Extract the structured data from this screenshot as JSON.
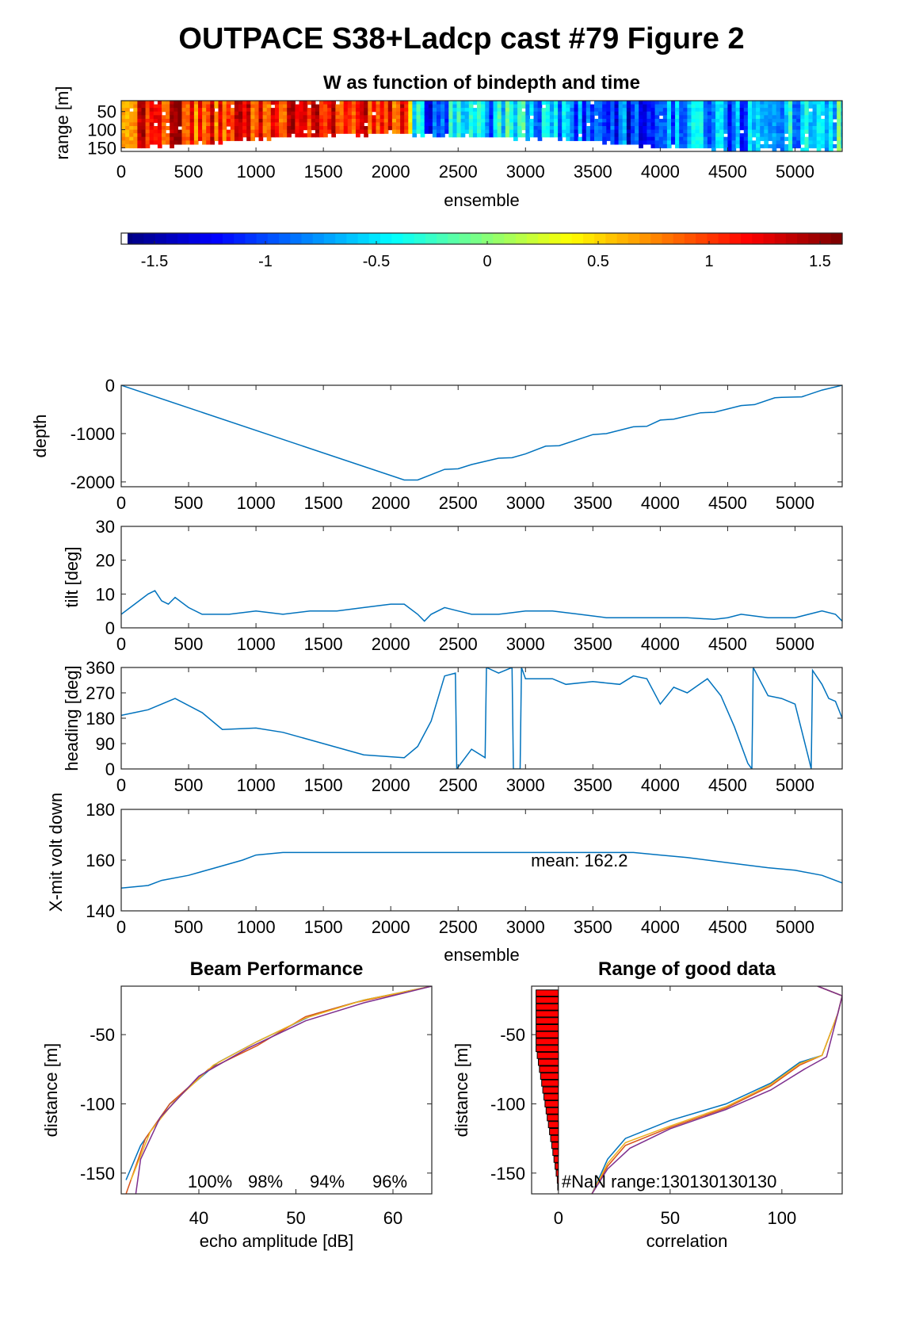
{
  "figure": {
    "title": "OUTPACE S38+Ladcp cast #79 Figure 2"
  },
  "chart_data": [
    {
      "type": "heatmap",
      "title": "W as function of bindepth and time",
      "xlabel": "ensemble",
      "ylabel": "range [m]",
      "xlim": [
        0,
        5350
      ],
      "ylim": [
        20,
        160
      ],
      "xticks": [
        0,
        500,
        1000,
        1500,
        2000,
        2500,
        3000,
        3500,
        4000,
        4500,
        5000
      ],
      "yticks": [
        50,
        100,
        150
      ],
      "colorbar": {
        "ticks": [
          -1.5,
          -1,
          -0.5,
          0,
          0.5,
          1,
          1.5
        ],
        "clim": [
          -1.65,
          1.6
        ],
        "colormap": "jet"
      },
      "w_profile": {
        "x": [
          0,
          200,
          400,
          600,
          900,
          1200,
          1500,
          1800,
          2100,
          2150,
          2300,
          2500,
          2700,
          2900,
          3100,
          3400,
          3700,
          4000,
          4300,
          4500,
          4800,
          5100,
          5350
        ],
        "w": [
          0.7,
          1.2,
          1.3,
          1.0,
          1.1,
          1.2,
          1.25,
          1.1,
          1.0,
          -0.4,
          -1.2,
          -0.3,
          -0.8,
          -0.2,
          -0.7,
          -0.9,
          -1.1,
          -0.8,
          -0.5,
          -1.1,
          -0.4,
          -0.7,
          -0.3
        ]
      }
    },
    {
      "type": "line",
      "xlabel": "",
      "ylabel": "depth",
      "xlim": [
        0,
        5350
      ],
      "ylim": [
        -2100,
        0
      ],
      "xticks": [
        0,
        500,
        1000,
        1500,
        2000,
        2500,
        3000,
        3500,
        4000,
        4500,
        5000
      ],
      "yticks": [
        0,
        -1000,
        -2000
      ],
      "x": [
        0,
        2100,
        2200,
        2400,
        2500,
        2600,
        2800,
        2900,
        3000,
        3150,
        3250,
        3500,
        3600,
        3800,
        3900,
        4000,
        4100,
        4300,
        4400,
        4600,
        4700,
        4850,
        4900,
        5050,
        5200,
        5350
      ],
      "y": [
        0,
        -1960,
        -1960,
        -1740,
        -1730,
        -1640,
        -1510,
        -1500,
        -1420,
        -1260,
        -1250,
        -1020,
        -1000,
        -860,
        -850,
        -720,
        -700,
        -570,
        -560,
        -420,
        -400,
        -260,
        -250,
        -240,
        -100,
        0
      ]
    },
    {
      "type": "line",
      "xlabel": "",
      "ylabel": "tilt [deg]",
      "xlim": [
        0,
        5350
      ],
      "ylim": [
        0,
        30
      ],
      "xticks": [
        0,
        500,
        1000,
        1500,
        2000,
        2500,
        3000,
        3500,
        4000,
        4500,
        5000
      ],
      "yticks": [
        0,
        10,
        20,
        30
      ],
      "x": [
        0,
        100,
        200,
        250,
        300,
        350,
        400,
        500,
        600,
        800,
        1000,
        1200,
        1400,
        1600,
        1800,
        2000,
        2100,
        2200,
        2250,
        2300,
        2400,
        2500,
        2600,
        2800,
        3000,
        3200,
        3400,
        3600,
        3800,
        4000,
        4200,
        4400,
        4500,
        4600,
        4800,
        5000,
        5200,
        5300,
        5350
      ],
      "y": [
        4,
        7,
        10,
        11,
        8,
        7,
        9,
        6,
        4,
        4,
        5,
        4,
        5,
        5,
        6,
        7,
        7,
        4,
        2,
        4,
        6,
        5,
        4,
        4,
        5,
        5,
        4,
        3,
        3,
        3,
        3,
        2.5,
        3,
        4,
        3,
        3,
        5,
        4,
        2
      ]
    },
    {
      "type": "line",
      "xlabel": "",
      "ylabel": "heading [deg]",
      "xlim": [
        0,
        5350
      ],
      "ylim": [
        0,
        360
      ],
      "xticks": [
        0,
        500,
        1000,
        1500,
        2000,
        2500,
        3000,
        3500,
        4000,
        4500,
        5000
      ],
      "yticks": [
        0,
        90,
        180,
        270,
        360
      ],
      "x": [
        0,
        100,
        200,
        400,
        600,
        750,
        1000,
        1200,
        1500,
        1800,
        2100,
        2200,
        2300,
        2400,
        2480,
        2490,
        2600,
        2700,
        2710,
        2800,
        2900,
        2910,
        2960,
        2970,
        3000,
        3200,
        3300,
        3500,
        3700,
        3800,
        3900,
        4000,
        4100,
        4200,
        4350,
        4450,
        4550,
        4650,
        4680,
        4690,
        4800,
        4900,
        5000,
        5100,
        5120,
        5130,
        5200,
        5250,
        5300,
        5350
      ],
      "y": [
        190,
        200,
        210,
        250,
        200,
        140,
        145,
        130,
        90,
        50,
        40,
        80,
        170,
        330,
        340,
        0,
        70,
        40,
        360,
        340,
        360,
        0,
        0,
        360,
        320,
        320,
        300,
        310,
        300,
        330,
        320,
        230,
        290,
        270,
        320,
        260,
        150,
        20,
        0,
        360,
        260,
        250,
        230,
        40,
        0,
        350,
        300,
        250,
        240,
        180
      ]
    },
    {
      "type": "line",
      "xlabel": "ensemble",
      "ylabel": "X-mit volt down",
      "xlim": [
        0,
        5350
      ],
      "ylim": [
        140,
        180
      ],
      "xticks": [
        0,
        500,
        1000,
        1500,
        2000,
        2500,
        3000,
        3500,
        4000,
        4500,
        5000
      ],
      "yticks": [
        140,
        160,
        180
      ],
      "annotation": "mean: 162.2",
      "x": [
        0,
        200,
        300,
        500,
        700,
        900,
        1000,
        1200,
        3800,
        4000,
        4200,
        4500,
        4800,
        5000,
        5200,
        5350
      ],
      "y": [
        149,
        150,
        152,
        154,
        157,
        160,
        162,
        163,
        163,
        162,
        161,
        159,
        157,
        156,
        154,
        151
      ]
    },
    {
      "type": "line",
      "title": "Beam Performance",
      "xlabel": "echo amplitude [dB]",
      "ylabel": "distance [m]",
      "xlim": [
        32,
        64
      ],
      "ylim": [
        -165,
        -15
      ],
      "xticks": [
        40,
        50,
        60
      ],
      "yticks": [
        -50,
        -100,
        -150
      ],
      "annotations": [
        "100%",
        "98%",
        "94%",
        "96%"
      ],
      "series": [
        {
          "color": "#0072bd",
          "x": [
            64,
            57,
            52,
            46,
            42,
            37,
            34,
            32.5
          ],
          "y": [
            -15,
            -25,
            -35,
            -55,
            -70,
            -100,
            -130,
            -155
          ]
        },
        {
          "color": "#d95319",
          "x": [
            64,
            56,
            51,
            46,
            41,
            37,
            34.5,
            32.5
          ],
          "y": [
            -15,
            -27,
            -37,
            -58,
            -75,
            -100,
            -125,
            -165
          ]
        },
        {
          "color": "#edb120",
          "x": [
            64,
            57,
            51,
            46,
            41.5,
            37.5,
            35,
            33
          ],
          "y": [
            -15,
            -25,
            -38,
            -55,
            -72,
            -98,
            -120,
            -155
          ]
        },
        {
          "color": "#7e2f8e",
          "x": [
            64,
            57,
            51,
            45,
            40,
            36,
            34,
            33.5
          ],
          "y": [
            -15,
            -27,
            -40,
            -60,
            -80,
            -110,
            -140,
            -165
          ]
        }
      ]
    },
    {
      "type": "line",
      "title": "Range of good data",
      "xlabel": "correlation",
      "ylabel": "distance [m]",
      "xlim": [
        -12,
        127
      ],
      "ylim": [
        -165,
        -15
      ],
      "xticks": [
        0,
        50,
        100
      ],
      "yticks": [
        -50,
        -100,
        -150
      ],
      "annotation": "#NaN range:130130130130",
      "bars": {
        "y": [
          -20,
          -25,
          -30,
          -35,
          -40,
          -45,
          -50,
          -55,
          -60,
          -65,
          -70,
          -75,
          -80,
          -85,
          -90,
          -95,
          -100,
          -105,
          -110,
          -115,
          -120,
          -125,
          -130,
          -135,
          -140,
          -145,
          -150,
          -155,
          -160
        ],
        "x": [
          -10,
          -10,
          -10,
          -10,
          -10,
          -10,
          -10,
          -10,
          -10,
          -9.5,
          -9,
          -8.5,
          -8,
          -7.5,
          -7,
          -6.5,
          -6,
          -5.5,
          -5,
          -4.5,
          -4,
          -3.5,
          -3,
          -2.5,
          -2,
          -1.5,
          -1,
          -0.5,
          -0.3
        ]
      },
      "series": [
        {
          "color": "#0072bd",
          "x": [
            116,
            127,
            125,
            118,
            108,
            95,
            75,
            50,
            30,
            22,
            15
          ],
          "y": [
            -15,
            -22,
            -35,
            -65,
            -70,
            -85,
            -100,
            -112,
            -125,
            -140,
            -165
          ]
        },
        {
          "color": "#d95319",
          "x": [
            116,
            127,
            125,
            118,
            108,
            95,
            75,
            50,
            30,
            22,
            15
          ],
          "y": [
            -15,
            -22,
            -35,
            -65,
            -72,
            -87,
            -103,
            -117,
            -130,
            -145,
            -165
          ]
        },
        {
          "color": "#edb120",
          "x": [
            116,
            127,
            125,
            118,
            108,
            95,
            75,
            50,
            30,
            22,
            15
          ],
          "y": [
            -15,
            -22,
            -35,
            -65,
            -71,
            -86,
            -102,
            -116,
            -128,
            -143,
            -165
          ]
        },
        {
          "color": "#7e2f8e",
          "x": [
            116,
            127,
            125,
            120,
            110,
            95,
            75,
            50,
            32,
            22,
            15
          ],
          "y": [
            -15,
            -22,
            -35,
            -66,
            -75,
            -90,
            -104,
            -118,
            -132,
            -147,
            -165
          ]
        }
      ]
    }
  ]
}
